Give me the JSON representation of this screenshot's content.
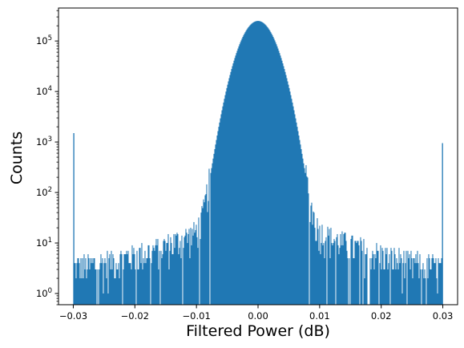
{
  "chart_data": {
    "type": "histogram",
    "title": "",
    "xlabel": "Filtered Power (dB)",
    "ylabel": "Counts",
    "xlim": [
      -0.0324,
      0.0324
    ],
    "ylim": [
      0.6,
      450000
    ],
    "yscale": "log",
    "bar_color": "#1f77b4",
    "grid": false,
    "legend": "none",
    "x_ticks": [
      {
        "value": -0.03,
        "label": "−0.03"
      },
      {
        "value": -0.02,
        "label": "−0.02"
      },
      {
        "value": -0.01,
        "label": "−0.01"
      },
      {
        "value": 0.0,
        "label": "0.00"
      },
      {
        "value": 0.01,
        "label": "0.01"
      },
      {
        "value": 0.02,
        "label": "0.02"
      },
      {
        "value": 0.03,
        "label": "0.03"
      }
    ],
    "y_ticks": [
      {
        "value": 1,
        "base": "10",
        "exp": "0"
      },
      {
        "value": 10,
        "base": "10",
        "exp": "1"
      },
      {
        "value": 100,
        "base": "10",
        "exp": "2"
      },
      {
        "value": 1000,
        "base": "10",
        "exp": "3"
      },
      {
        "value": 10000,
        "base": "10",
        "exp": "4"
      },
      {
        "value": 100000,
        "base": "10",
        "exp": "5"
      }
    ],
    "bin_range": [
      -0.03,
      0.03
    ],
    "peak_count": 250000,
    "edge_spikes": [
      {
        "x": -0.03,
        "count": 1500
      },
      {
        "x": 0.03,
        "count": 950
      }
    ]
  }
}
